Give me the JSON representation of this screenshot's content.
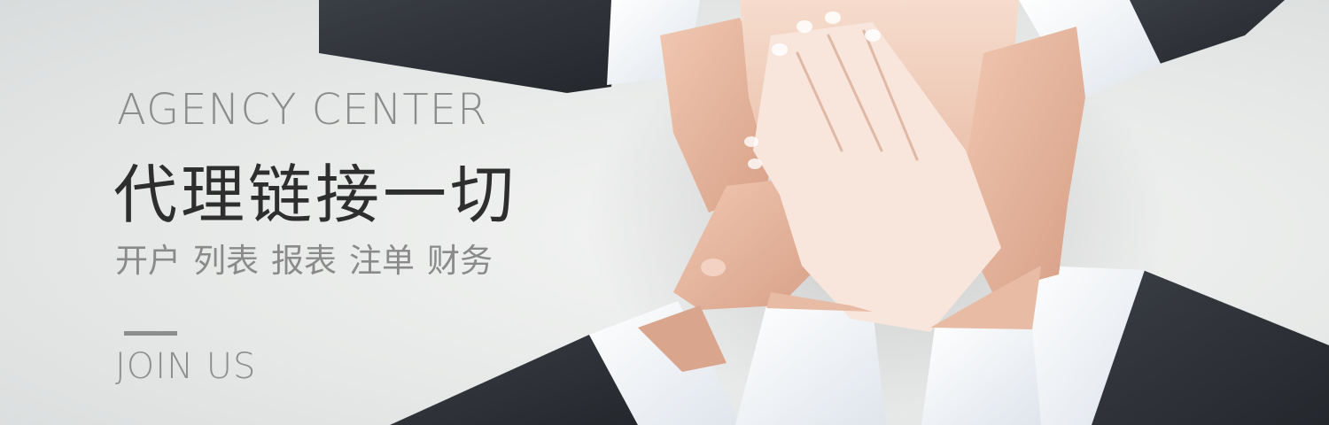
{
  "banner": {
    "eyebrow": "AGENCY CENTER",
    "headline": "代理链接一切",
    "services": [
      "开户",
      "列表",
      "报表",
      "注单",
      "财务"
    ],
    "cta": "JOIN US"
  },
  "colors": {
    "background": "#e9ebea",
    "eyebrow_text": "#8b8b8b",
    "headline_text": "#2e2e2e",
    "service_text": "#8a8a8a",
    "rule": "#8d8d8d",
    "suit": "#2f3238",
    "shirt_cuff": "#eef2f6",
    "skin": "#e4b39c"
  },
  "image": {
    "subject": "stacked-hands-teamwork-photo"
  }
}
